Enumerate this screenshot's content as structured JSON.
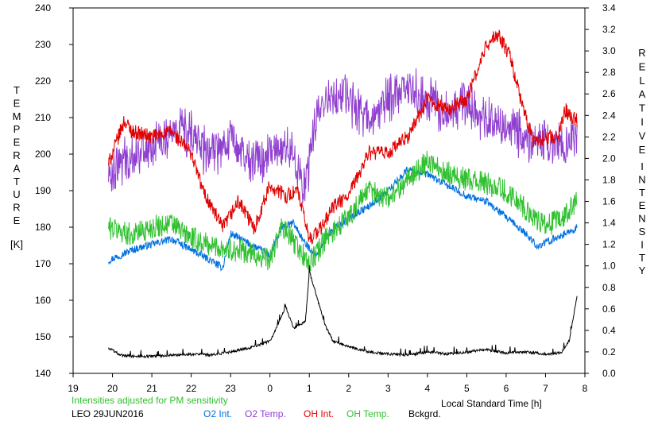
{
  "chart_data": {
    "type": "line",
    "left_axis": {
      "label_letters": [
        "T",
        "E",
        "M",
        "P",
        "E",
        "R",
        "A",
        "T",
        "U",
        "R",
        "E"
      ],
      "unit": "[K]",
      "ylim": [
        140,
        240
      ],
      "ticks": [
        "140",
        "150",
        "160",
        "170",
        "180",
        "190",
        "200",
        "210",
        "220",
        "230",
        "240"
      ]
    },
    "right_axis": {
      "label_word1": [
        "R",
        "E",
        "L",
        "A",
        "T",
        "I",
        "V",
        "E"
      ],
      "label_word2": [
        "I",
        "N",
        "T",
        "E",
        "N",
        "S",
        "I",
        "T",
        "Y"
      ],
      "ylim": [
        0.0,
        3.4
      ],
      "ticks": [
        "0.0",
        "0.2",
        "0.4",
        "0.6",
        "0.8",
        "1.0",
        "1.2",
        "1.4",
        "1.6",
        "1.8",
        "2.0",
        "2.2",
        "2.4",
        "2.6",
        "2.8",
        "3.0",
        "3.2",
        "3.4"
      ]
    },
    "x_axis": {
      "label": "Local Standard Time [h]",
      "ticks": [
        "19",
        "20",
        "21",
        "22",
        "23",
        "0",
        "1",
        "2",
        "3",
        "4",
        "5",
        "6",
        "7",
        "8"
      ]
    },
    "note": "Intensities adjusted for PM sensitivity",
    "date_label": "LEO 29JUN2016",
    "grid": false,
    "series": [
      {
        "name": "O2 Int.",
        "axis": "right",
        "color": "#0070e0",
        "t": [
          19.9,
          20.5,
          21.0,
          21.5,
          22.0,
          22.5,
          22.8,
          23.0,
          23.5,
          24.0,
          24.3,
          24.6,
          24.9,
          25.2,
          25.5,
          26.0,
          26.5,
          27.0,
          27.5,
          28.0,
          28.5,
          29.0,
          29.5,
          30.0,
          30.5,
          30.8,
          31.2,
          31.5,
          31.8
        ],
        "values": [
          1.05,
          1.15,
          1.2,
          1.25,
          1.15,
          1.05,
          0.98,
          1.3,
          1.2,
          1.1,
          1.35,
          1.4,
          1.2,
          1.1,
          1.3,
          1.45,
          1.55,
          1.7,
          1.9,
          1.85,
          1.75,
          1.65,
          1.6,
          1.45,
          1.3,
          1.18,
          1.25,
          1.3,
          1.35
        ]
      },
      {
        "name": "O2 Temp.",
        "axis": "left",
        "color": "#9040d0",
        "t": [
          19.9,
          20.5,
          21.0,
          21.5,
          22.0,
          22.5,
          23.0,
          23.5,
          24.0,
          24.5,
          24.9,
          25.2,
          25.5,
          26.0,
          26.5,
          27.0,
          27.5,
          28.0,
          28.5,
          29.0,
          29.5,
          30.0,
          30.5,
          31.0,
          31.5,
          31.8
        ],
        "values": [
          195,
          200,
          202,
          206,
          205,
          200,
          205,
          198,
          200,
          202,
          190,
          212,
          216,
          215,
          210,
          215,
          218,
          215,
          212,
          213,
          210,
          207,
          205,
          203,
          202,
          204
        ]
      },
      {
        "name": "OH Int.",
        "axis": "right",
        "color": "#e00000",
        "t": [
          19.9,
          20.3,
          20.5,
          21.0,
          21.5,
          22.0,
          22.3,
          22.8,
          23.2,
          23.6,
          24.0,
          24.4,
          24.7,
          25.0,
          25.3,
          25.6,
          26.0,
          26.5,
          27.0,
          27.5,
          28.0,
          28.5,
          29.0,
          29.5,
          29.8,
          30.1,
          30.4,
          30.7,
          31.0,
          31.3,
          31.5,
          31.8
        ],
        "values": [
          1.95,
          2.35,
          2.25,
          2.2,
          2.25,
          2.05,
          1.7,
          1.35,
          1.6,
          1.35,
          1.75,
          1.65,
          1.7,
          1.25,
          1.35,
          1.55,
          1.65,
          2.05,
          2.05,
          2.2,
          2.55,
          2.45,
          2.55,
          3.05,
          3.15,
          2.95,
          2.5,
          2.15,
          2.2,
          2.2,
          2.45,
          2.35
        ]
      },
      {
        "name": "OH Temp.",
        "axis": "left",
        "color": "#30c030",
        "t": [
          19.9,
          20.5,
          21.0,
          21.5,
          22.0,
          22.5,
          23.0,
          23.5,
          24.0,
          24.3,
          24.6,
          25.0,
          25.5,
          26.0,
          26.5,
          27.0,
          27.5,
          28.0,
          28.5,
          29.0,
          29.5,
          30.0,
          30.5,
          31.0,
          31.5,
          31.8
        ],
        "values": [
          180,
          178,
          180,
          181,
          177,
          175,
          174,
          173,
          171,
          180,
          176,
          170,
          178,
          183,
          190,
          188,
          193,
          198,
          195,
          193,
          192,
          190,
          185,
          180,
          183,
          187
        ]
      },
      {
        "name": "Bckgrd.",
        "axis": "right",
        "color": "#000000",
        "t": [
          19.9,
          20.2,
          20.5,
          21.0,
          21.5,
          22.0,
          22.5,
          23.0,
          23.5,
          24.0,
          24.2,
          24.4,
          24.6,
          24.9,
          25.0,
          25.2,
          25.4,
          25.6,
          26.0,
          26.5,
          27.0,
          27.5,
          28.0,
          28.5,
          29.0,
          29.5,
          30.0,
          30.5,
          31.0,
          31.4,
          31.6,
          31.8
        ],
        "values": [
          0.24,
          0.17,
          0.16,
          0.16,
          0.17,
          0.18,
          0.17,
          0.2,
          0.24,
          0.3,
          0.45,
          0.62,
          0.42,
          0.48,
          0.95,
          0.7,
          0.45,
          0.3,
          0.25,
          0.2,
          0.18,
          0.17,
          0.2,
          0.18,
          0.2,
          0.22,
          0.19,
          0.2,
          0.18,
          0.19,
          0.3,
          0.72
        ]
      }
    ]
  }
}
